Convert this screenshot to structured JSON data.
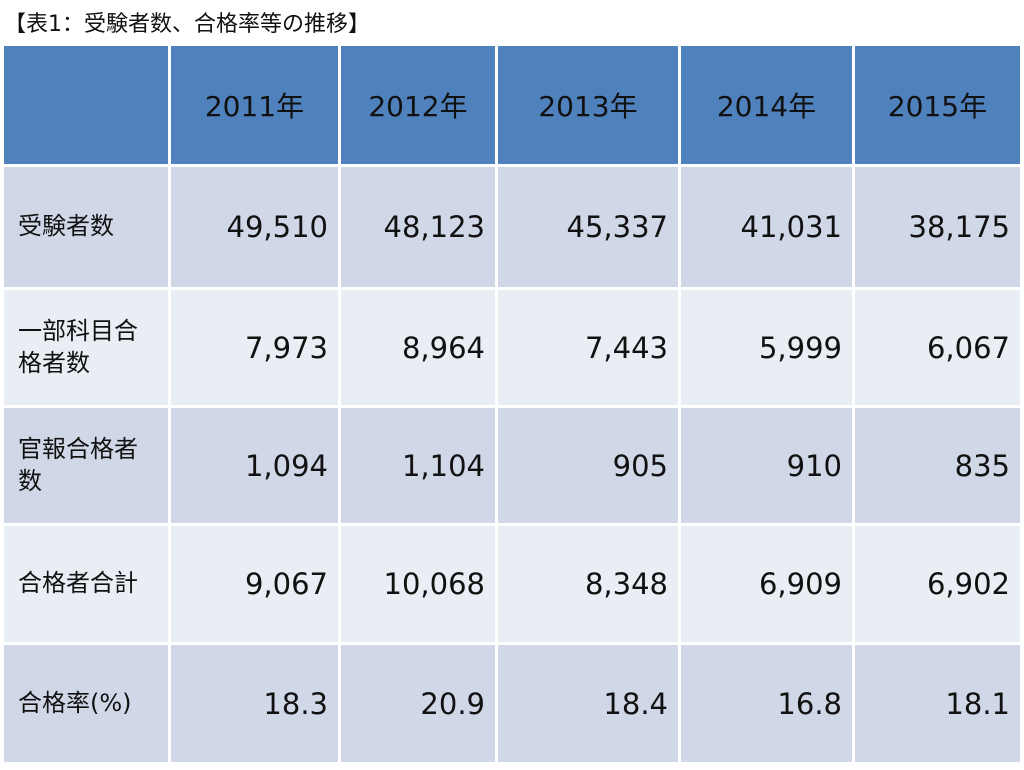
{
  "title": "【表1：受験者数、合格率等の推移】",
  "table": {
    "header": [
      "2011年",
      "2012年",
      "2013年",
      "2014年",
      "2015年"
    ],
    "rows": [
      {
        "label": "受験者数",
        "values": [
          "49,510",
          "48,123",
          "45,337",
          "41,031",
          "38,175"
        ]
      },
      {
        "label": "一部科目合格者数",
        "values": [
          "7,973",
          "8,964",
          "7,443",
          "5,999",
          "6,067"
        ]
      },
      {
        "label": "官報合格者数",
        "values": [
          "1,094",
          "1,104",
          "905",
          "910",
          "835"
        ]
      },
      {
        "label": "合格者合計",
        "values": [
          "9,067",
          "10,068",
          "8,348",
          "6,909",
          "6,902"
        ]
      },
      {
        "label": "合格率(%)",
        "values": [
          "18.3",
          "20.9",
          "18.4",
          "16.8",
          "18.1"
        ]
      }
    ]
  }
}
